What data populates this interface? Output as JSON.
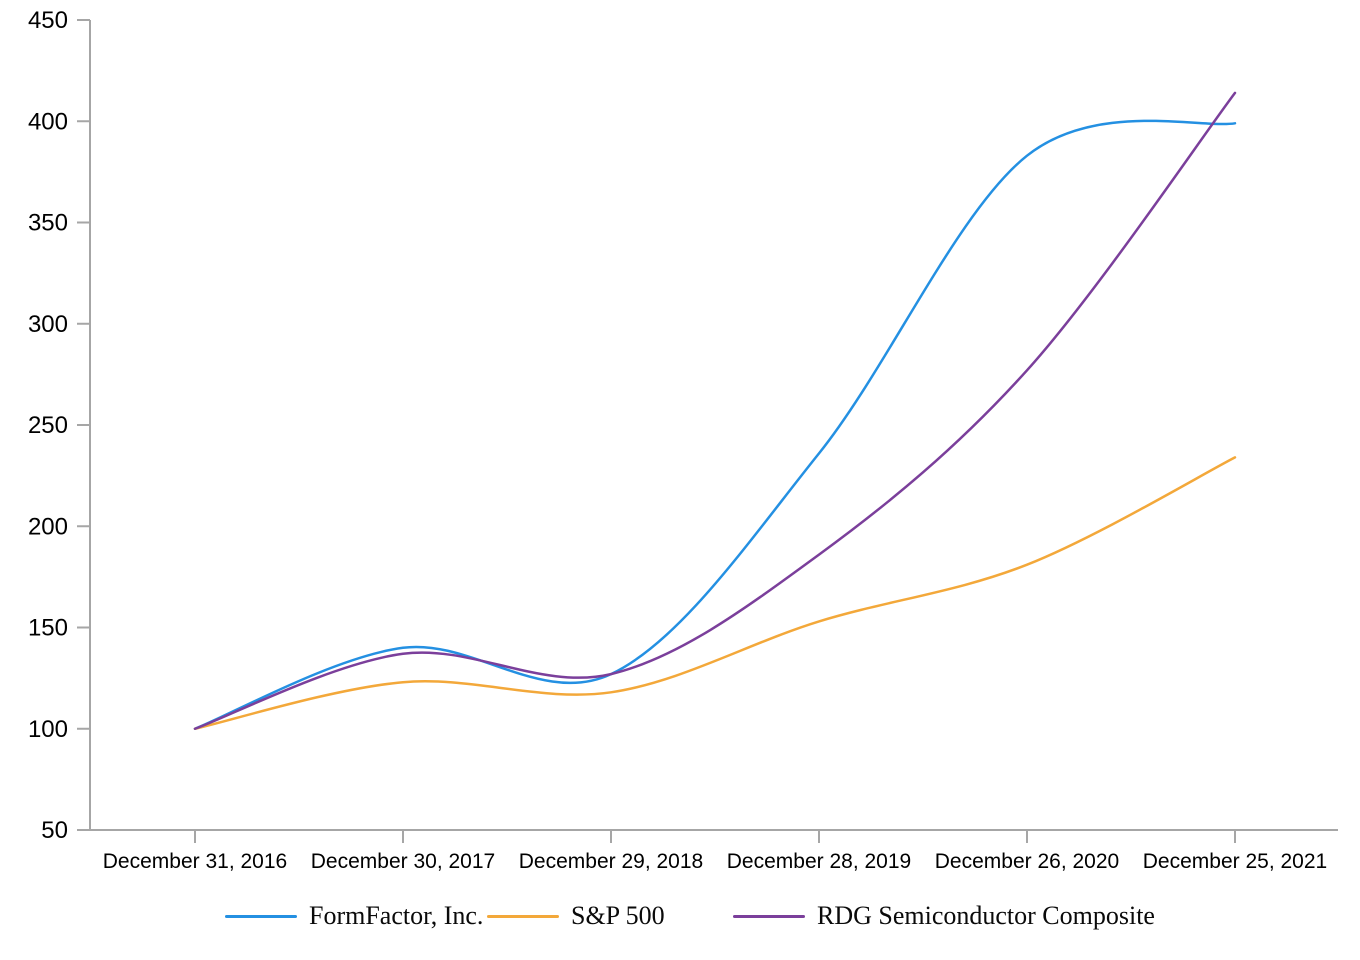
{
  "chart_data": {
    "type": "line",
    "title": "",
    "xlabel": "",
    "ylabel": "",
    "categories": [
      "December 31, 2016",
      "December 30, 2017",
      "December 29, 2018",
      "December 28, 2019",
      "December 26, 2020",
      "December 25, 2021"
    ],
    "y_tick_labels": [
      "50",
      "100",
      "150",
      "200",
      "250",
      "300",
      "350",
      "400",
      "450"
    ],
    "ylim": [
      50,
      450
    ],
    "y_tick_step": 50,
    "grid": false,
    "smoothed_lines": true,
    "legend_position": "bottom",
    "axis_color": "#a6a6a6",
    "text_color": "#000000",
    "series": [
      {
        "name": "FormFactor, Inc.",
        "color": "#2490e2",
        "values": [
          100,
          140,
          127,
          236,
          383,
          399
        ]
      },
      {
        "name": "S&P 500",
        "color": "#f3a83a",
        "values": [
          100,
          123,
          118,
          153,
          181,
          234
        ]
      },
      {
        "name": "RDG Semiconductor Composite",
        "color": "#7b3f9b",
        "values": [
          100,
          137,
          127,
          186,
          277,
          414
        ]
      }
    ]
  }
}
